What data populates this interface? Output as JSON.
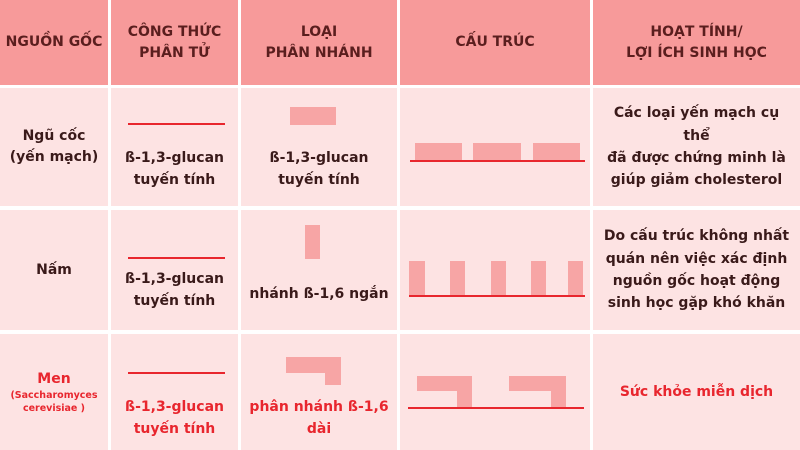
{
  "headers": {
    "source": "NGUỒN GỐC",
    "formula_1": "CÔNG THỨC",
    "formula_2": "PHÂN TỬ",
    "branch_1": "LOẠI",
    "branch_2": "PHÂN NHÁNH",
    "structure": "CẤU TRÚC",
    "activity_1": "HOẠT TÍNH/",
    "activity_2": "LỢI ÍCH SINH HỌC"
  },
  "rows": [
    {
      "source_1": "Ngũ cốc",
      "source_2": "(yến mạch)",
      "formula_1": "ß-1,3-glucan",
      "formula_2": "tuyến tính",
      "branch_1": "ß-1,3-glucan",
      "branch_2": "tuyến tính",
      "activity_1": "Các loại yến mạch cụ thể",
      "activity_2": "đã được chứng minh là",
      "activity_3": "giúp giảm cholesterol"
    },
    {
      "source_1": "Nấm",
      "formula_1": "ß-1,3-glucan",
      "formula_2": "tuyến tính",
      "branch_1": "nhánh ß-1,6 ngắn",
      "activity_1": "Do cấu trúc không nhất",
      "activity_2": "quán nên việc xác định",
      "activity_3": "nguồn gốc hoạt động",
      "activity_4": "sinh học gặp khó khăn"
    },
    {
      "source_1": "Men",
      "source_2": "(Saccharomyces",
      "source_3": "cerevisiae )",
      "formula_1": "ß-1,3-glucan",
      "formula_2": "tuyến tính",
      "branch_1": "phân nhánh ß-1,6",
      "branch_2": "dài",
      "activity_1": "Sức khỏe miễn dịch"
    }
  ],
  "colors": {
    "header_bg": "#f79a9a",
    "body_bg": "#fde3e3",
    "accent_red": "#e8262e",
    "block_pink": "#f7a5a5"
  }
}
